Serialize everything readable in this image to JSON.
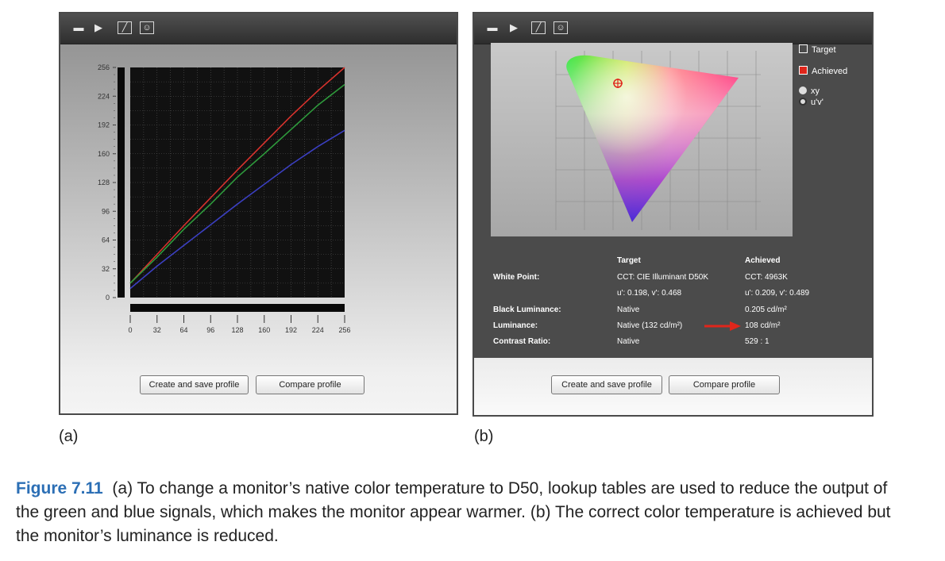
{
  "toolbar_icons": [
    "monitor-icon",
    "play-icon",
    "curve-icon",
    "person-icon"
  ],
  "panel_a": {
    "chart_data": {
      "type": "line",
      "x_ticks": [
        0,
        32,
        64,
        96,
        128,
        160,
        192,
        224,
        256
      ],
      "y_ticks": [
        0,
        32,
        64,
        96,
        128,
        160,
        192,
        224,
        256
      ],
      "xlim": [
        0,
        256
      ],
      "ylim": [
        0,
        256
      ],
      "grid": true,
      "series": [
        {
          "color": "#d8322d",
          "x": [
            0,
            32,
            64,
            96,
            128,
            160,
            192,
            224,
            256
          ],
          "y": [
            16,
            48,
            80,
            111,
            142,
            172,
            202,
            230,
            256
          ]
        },
        {
          "color": "#2e9a3c",
          "x": [
            0,
            32,
            64,
            96,
            128,
            160,
            192,
            224,
            256
          ],
          "y": [
            16,
            45,
            76,
            104,
            134,
            160,
            187,
            214,
            237
          ]
        },
        {
          "color": "#3b3fc0",
          "x": [
            0,
            32,
            64,
            96,
            128,
            160,
            192,
            224,
            256
          ],
          "y": [
            10,
            35,
            58,
            81,
            104,
            126,
            148,
            168,
            186
          ]
        }
      ]
    },
    "create_button": "Create and save profile",
    "compare_button": "Compare profile"
  },
  "panel_b": {
    "legend": {
      "target": "Target",
      "achieved": "Achieved",
      "xy": "xy",
      "uv": "u'v'"
    },
    "table": {
      "header_target": "Target",
      "header_achieved": "Achieved",
      "rows": [
        {
          "label": "White Point:",
          "target": "CCT: CIE Illuminant D50K",
          "achieved": "CCT: 4963K"
        },
        {
          "label": "",
          "target": "u': 0.198, v': 0.468",
          "achieved": "u': 0.209, v': 0.489"
        },
        {
          "label": "Black Luminance:",
          "target": "Native",
          "achieved": "0.205 cd/m²"
        },
        {
          "label": "Luminance:",
          "target": "Native (132 cd/m²)",
          "achieved": "108 cd/m²"
        },
        {
          "label": "Contrast Ratio:",
          "target": "Native",
          "achieved": "529 : 1"
        }
      ]
    },
    "create_button": "Create and save profile",
    "compare_button": "Compare profile",
    "arrow_color": "#e0261b"
  },
  "labels": {
    "a": "(a)",
    "b": "(b)"
  },
  "caption": {
    "figure": "Figure 7.11",
    "text": "(a) To change a monitor’s native color temperature to D50, lookup tables are used to reduce the output of the green and blue signals, which makes the monitor appear warmer. (b) The correct color temperature is achieved but the monitor’s luminance is reduced."
  }
}
